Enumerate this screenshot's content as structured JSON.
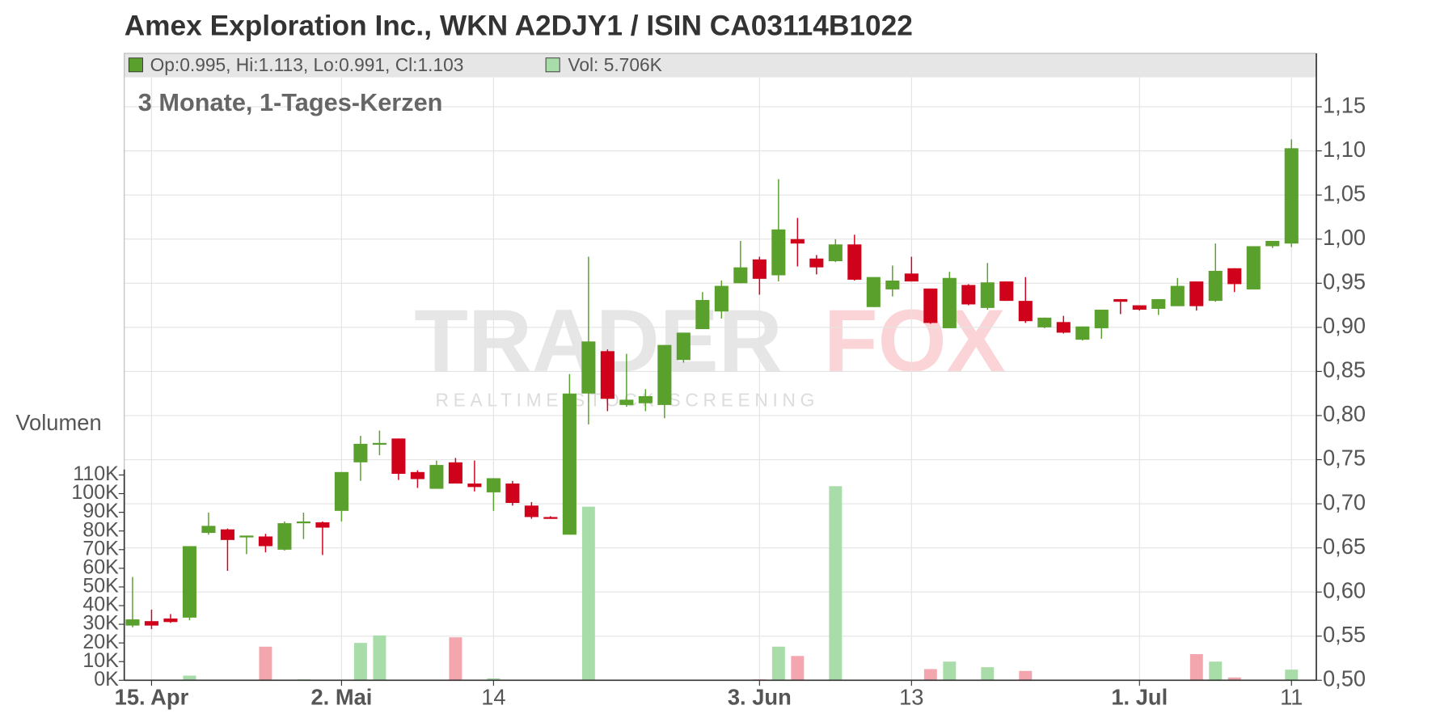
{
  "chart_data": {
    "type": "candlestick",
    "title": "Amex Exploration Inc., WKN A2DJY1 / ISIN CA03114B1022",
    "subtitle": "3 Monate, 1-Tages-Kerzen",
    "legend_price": "Op:0.995, Hi:1.113, Lo:0.991, Cl:1.103",
    "legend_volume": "Vol: 5.706K",
    "volume_axis_label": "Volumen",
    "watermark": {
      "brand_left": "TRADER",
      "brand_right": "FOX",
      "tagline": "REALTIME STOCK SCREENING"
    },
    "categories": [
      null,
      "15. Apr",
      null,
      null,
      null,
      null,
      null,
      null,
      null,
      null,
      null,
      "2. Mai",
      null,
      null,
      null,
      null,
      null,
      null,
      null,
      "14",
      null,
      null,
      null,
      null,
      null,
      null,
      null,
      null,
      null,
      null,
      null,
      null,
      null,
      "3. Jun",
      null,
      null,
      null,
      null,
      null,
      null,
      null,
      "13",
      null,
      null,
      null,
      null,
      null,
      null,
      null,
      null,
      null,
      null,
      null,
      "1. Jul",
      null,
      null,
      null,
      null,
      null,
      null,
      null,
      "11"
    ],
    "open": [
      0.562,
      0.567,
      0.57,
      0.571,
      0.667,
      0.671,
      0.662,
      0.663,
      0.648,
      0.679,
      0.679,
      0.692,
      0.747,
      0.767,
      0.774,
      0.736,
      0.717,
      0.747,
      0.723,
      0.713,
      0.723,
      0.698,
      0.685,
      0.665,
      0.825,
      0.873,
      0.812,
      0.814,
      0.812,
      0.863,
      0.898,
      0.918,
      0.95,
      0.977,
      0.959,
      1.0,
      0.978,
      0.975,
      0.994,
      0.923,
      0.943,
      0.961,
      0.944,
      0.899,
      0.948,
      0.922,
      0.952,
      0.93,
      0.9,
      0.906,
      0.886,
      0.899,
      0.932,
      0.925,
      0.921,
      0.924,
      0.952,
      0.93,
      0.967,
      0.943,
      0.992,
      0.995
    ],
    "high": [
      0.617,
      0.58,
      0.575,
      0.652,
      0.69,
      0.672,
      0.664,
      0.666,
      0.68,
      0.69,
      0.68,
      0.736,
      0.777,
      0.783,
      0.774,
      0.738,
      0.749,
      0.752,
      0.749,
      0.729,
      0.726,
      0.702,
      0.686,
      0.847,
      0.98,
      0.875,
      0.87,
      0.83,
      0.88,
      0.894,
      0.94,
      0.953,
      0.998,
      0.98,
      1.068,
      1.024,
      0.982,
      1.0,
      1.005,
      0.957,
      0.97,
      0.98,
      0.944,
      0.963,
      0.949,
      0.973,
      0.952,
      0.957,
      0.911,
      0.913,
      0.901,
      0.92,
      0.932,
      0.925,
      0.932,
      0.956,
      0.952,
      0.995,
      0.967,
      0.992,
      0.998,
      1.113
    ],
    "low": [
      0.56,
      0.558,
      0.565,
      0.568,
      0.665,
      0.624,
      0.643,
      0.645,
      0.647,
      0.66,
      0.642,
      0.68,
      0.726,
      0.755,
      0.727,
      0.718,
      0.717,
      0.723,
      0.714,
      0.692,
      0.698,
      0.683,
      0.683,
      0.665,
      0.79,
      0.805,
      0.81,
      0.805,
      0.797,
      0.86,
      0.898,
      0.91,
      0.95,
      0.937,
      0.952,
      0.969,
      0.96,
      0.974,
      0.953,
      0.923,
      0.935,
      0.952,
      0.904,
      0.899,
      0.925,
      0.92,
      0.93,
      0.905,
      0.899,
      0.893,
      0.885,
      0.887,
      0.915,
      0.919,
      0.914,
      0.924,
      0.919,
      0.929,
      0.94,
      0.943,
      0.99,
      0.991
    ],
    "close": [
      0.569,
      0.562,
      0.566,
      0.652,
      0.675,
      0.659,
      0.664,
      0.652,
      0.678,
      0.68,
      0.673,
      0.736,
      0.768,
      0.769,
      0.734,
      0.728,
      0.744,
      0.723,
      0.719,
      0.729,
      0.701,
      0.685,
      0.683,
      0.825,
      0.884,
      0.819,
      0.818,
      0.822,
      0.88,
      0.894,
      0.931,
      0.947,
      0.968,
      0.955,
      1.011,
      0.995,
      0.968,
      0.994,
      0.954,
      0.957,
      0.953,
      0.952,
      0.905,
      0.956,
      0.926,
      0.951,
      0.93,
      0.907,
      0.911,
      0.894,
      0.901,
      0.92,
      0.929,
      0.92,
      0.932,
      0.947,
      0.924,
      0.964,
      0.949,
      0.992,
      0.998,
      1.103
    ],
    "volume": [
      0,
      0,
      0,
      2500,
      0,
      0,
      0,
      18000,
      0,
      500,
      0,
      0,
      20000,
      24000,
      0,
      0,
      0,
      23000,
      0,
      1000,
      0,
      0,
      0,
      0,
      93000,
      0,
      0,
      0,
      0,
      0,
      300,
      0,
      0,
      500,
      18000,
      13000,
      0,
      104000,
      0,
      0,
      0,
      0,
      6000,
      10000,
      0,
      7000,
      0,
      5000,
      0,
      0,
      0,
      0,
      0,
      0,
      300,
      0,
      14000,
      10000,
      1500,
      0,
      0,
      5706
    ],
    "up_color": "#5aa02c",
    "down_color": "#d0021b",
    "volume_up_color": "#a8dca8",
    "volume_down_color": "#f4a6ae",
    "ylim": [
      0.5,
      1.15
    ],
    "yticks": [
      {
        "value": 0.5,
        "label": "0,50"
      },
      {
        "value": 0.55,
        "label": "0,55"
      },
      {
        "value": 0.6,
        "label": "0,60"
      },
      {
        "value": 0.65,
        "label": "0,65"
      },
      {
        "value": 0.7,
        "label": "0,70"
      },
      {
        "value": 0.75,
        "label": "0,75"
      },
      {
        "value": 0.8,
        "label": "0,80"
      },
      {
        "value": 0.85,
        "label": "0,85"
      },
      {
        "value": 0.9,
        "label": "0,90"
      },
      {
        "value": 0.95,
        "label": "0,95"
      },
      {
        "value": 1.0,
        "label": "1,00"
      },
      {
        "value": 1.05,
        "label": "1,05"
      },
      {
        "value": 1.1,
        "label": "1,10"
      },
      {
        "value": 1.15,
        "label": "1,15"
      }
    ],
    "y2lim": [
      0,
      110000
    ],
    "y2ticks": [
      {
        "value": 0,
        "label": "0K"
      },
      {
        "value": 10000,
        "label": "10K"
      },
      {
        "value": 20000,
        "label": "20K"
      },
      {
        "value": 30000,
        "label": "30K"
      },
      {
        "value": 40000,
        "label": "40K"
      },
      {
        "value": 50000,
        "label": "50K"
      },
      {
        "value": 60000,
        "label": "60K"
      },
      {
        "value": 70000,
        "label": "70K"
      },
      {
        "value": 80000,
        "label": "80K"
      },
      {
        "value": 90000,
        "label": "90K"
      },
      {
        "value": 100000,
        "label": "100K"
      },
      {
        "value": 110000,
        "label": "110K"
      }
    ],
    "grid": true
  }
}
